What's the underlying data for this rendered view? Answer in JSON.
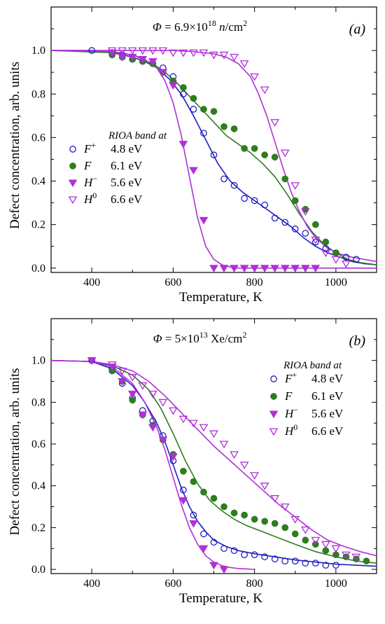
{
  "chart_data": [
    {
      "type": "scatter",
      "panel_label": "(a)",
      "fluence": {
        "prefix": "Φ",
        "text": " = 6.9×10",
        "exp": "18",
        "unit": " n/cm",
        "unit_exp": "2"
      },
      "xlabel": "Temperature, K",
      "ylabel": "Defect concentration, arb. units",
      "xlim": [
        300,
        1100
      ],
      "ylim": [
        -0.02,
        1.2
      ],
      "x_ticks": [
        400,
        600,
        800,
        1000
      ],
      "y_ticks": [
        0.0,
        0.2,
        0.4,
        0.6,
        0.8,
        1.0
      ],
      "legend": {
        "title": "RIOA band at",
        "placement": "middle-left"
      },
      "series": [
        {
          "name": "F",
          "sup": "+",
          "energy": "4.8 eV",
          "marker": "open-circle",
          "color": "#1f1fbf",
          "x": [
            400,
            450,
            475,
            500,
            525,
            550,
            575,
            600,
            625,
            650,
            675,
            700,
            725,
            750,
            775,
            800,
            825,
            850,
            875,
            900,
            925,
            950,
            975,
            1000,
            1025,
            1050
          ],
          "y": [
            1.0,
            0.99,
            0.98,
            0.96,
            0.95,
            0.94,
            0.92,
            0.88,
            0.8,
            0.73,
            0.62,
            0.52,
            0.41,
            0.38,
            0.32,
            0.31,
            0.29,
            0.23,
            0.21,
            0.18,
            0.16,
            0.12,
            0.09,
            0.07,
            0.05,
            0.04
          ],
          "fit_x": [
            300,
            400,
            450,
            500,
            530,
            560,
            590,
            620,
            650,
            680,
            710,
            740,
            770,
            800,
            830,
            860,
            890,
            920,
            950,
            980,
            1010,
            1040,
            1070,
            1100
          ],
          "fit_y": [
            1.0,
            1.0,
            0.99,
            0.97,
            0.95,
            0.92,
            0.87,
            0.8,
            0.7,
            0.59,
            0.48,
            0.4,
            0.35,
            0.31,
            0.27,
            0.23,
            0.19,
            0.14,
            0.1,
            0.07,
            0.05,
            0.03,
            0.02,
            0.015
          ]
        },
        {
          "name": "F",
          "sup": "",
          "energy": "6.1 eV",
          "marker": "filled-circle",
          "color": "#2e7d1e",
          "x": [
            450,
            475,
            500,
            525,
            550,
            575,
            600,
            625,
            650,
            675,
            700,
            725,
            750,
            775,
            800,
            825,
            850,
            875,
            900,
            925,
            950,
            975,
            1000
          ],
          "y": [
            0.98,
            0.97,
            0.96,
            0.95,
            0.94,
            0.9,
            0.86,
            0.83,
            0.78,
            0.73,
            0.72,
            0.65,
            0.64,
            0.55,
            0.55,
            0.52,
            0.51,
            0.41,
            0.31,
            0.27,
            0.2,
            0.12,
            0.07
          ],
          "fit_x": [
            300,
            450,
            500,
            550,
            580,
            610,
            640,
            670,
            700,
            730,
            760,
            790,
            820,
            850,
            880,
            910,
            940,
            970,
            1000,
            1030,
            1060,
            1100
          ],
          "fit_y": [
            1.0,
            0.99,
            0.98,
            0.94,
            0.9,
            0.85,
            0.79,
            0.73,
            0.67,
            0.61,
            0.57,
            0.53,
            0.48,
            0.42,
            0.34,
            0.25,
            0.17,
            0.11,
            0.07,
            0.04,
            0.025,
            0.015
          ]
        },
        {
          "name": "H",
          "sup": "−",
          "energy": "5.6 eV",
          "marker": "filled-triangle-down",
          "color": "#b030d8",
          "x": [
            450,
            475,
            500,
            525,
            550,
            575,
            600,
            625,
            650,
            675,
            700,
            725,
            750,
            775,
            800,
            825,
            850,
            875,
            900,
            925,
            950
          ],
          "y": [
            0.99,
            0.97,
            0.97,
            0.96,
            0.95,
            0.9,
            0.84,
            0.57,
            0.45,
            0.22,
            0.0,
            0.0,
            0.0,
            0.0,
            0.0,
            0.0,
            0.0,
            0.0,
            0.0,
            0.0,
            0.0
          ],
          "fit_x": [
            300,
            450,
            500,
            530,
            560,
            580,
            600,
            620,
            640,
            660,
            680,
            700,
            720,
            740,
            760,
            800,
            900,
            1100
          ],
          "fit_y": [
            1.0,
            0.995,
            0.98,
            0.96,
            0.92,
            0.86,
            0.76,
            0.61,
            0.42,
            0.23,
            0.1,
            0.04,
            0.015,
            0.005,
            0.0,
            0.0,
            0.0,
            0.0
          ]
        },
        {
          "name": "H",
          "sup": "0",
          "energy": "6.6 eV",
          "marker": "open-triangle-down",
          "color": "#b030d8",
          "x": [
            450,
            475,
            500,
            525,
            550,
            575,
            600,
            625,
            650,
            675,
            700,
            725,
            750,
            775,
            800,
            825,
            850,
            875,
            900,
            925,
            950,
            975,
            1000,
            1025
          ],
          "y": [
            1.0,
            1.0,
            1.0,
            1.0,
            1.0,
            1.0,
            0.99,
            0.99,
            0.99,
            0.99,
            0.98,
            0.98,
            0.97,
            0.94,
            0.88,
            0.82,
            0.67,
            0.53,
            0.38,
            0.26,
            0.13,
            0.07,
            0.04,
            0.02
          ],
          "fit_x": [
            300,
            600,
            650,
            700,
            730,
            760,
            790,
            810,
            830,
            850,
            870,
            890,
            910,
            930,
            950,
            980,
            1010,
            1040,
            1070,
            1100
          ],
          "fit_y": [
            1.0,
            1.0,
            0.995,
            0.985,
            0.97,
            0.94,
            0.88,
            0.8,
            0.7,
            0.58,
            0.46,
            0.35,
            0.26,
            0.19,
            0.14,
            0.09,
            0.065,
            0.05,
            0.04,
            0.03
          ]
        }
      ]
    },
    {
      "type": "scatter",
      "panel_label": "(b)",
      "fluence": {
        "prefix": "Φ",
        "text": " = 5×10",
        "exp": "13",
        "unit": " Xe/cm",
        "unit_exp": "2"
      },
      "xlabel": "Temperature, K",
      "ylabel": "Defect concentration, arb. units",
      "xlim": [
        300,
        1100
      ],
      "ylim": [
        -0.02,
        1.2
      ],
      "x_ticks": [
        400,
        600,
        800,
        1000
      ],
      "y_ticks": [
        0.0,
        0.2,
        0.4,
        0.6,
        0.8,
        1.0
      ],
      "legend": {
        "title": "RIOA band at",
        "placement": "middle-right"
      },
      "series": [
        {
          "name": "F",
          "sup": "+",
          "energy": "4.8 eV",
          "marker": "open-circle",
          "color": "#1f1fbf",
          "x": [
            400,
            450,
            475,
            500,
            525,
            550,
            575,
            600,
            625,
            650,
            675,
            700,
            725,
            750,
            775,
            800,
            825,
            850,
            875,
            900,
            925,
            950,
            975,
            1000
          ],
          "y": [
            1.0,
            0.96,
            0.89,
            0.82,
            0.76,
            0.71,
            0.64,
            0.52,
            0.38,
            0.26,
            0.17,
            0.13,
            0.1,
            0.09,
            0.07,
            0.07,
            0.06,
            0.05,
            0.04,
            0.04,
            0.03,
            0.03,
            0.02,
            0.02
          ],
          "fit_x": [
            300,
            400,
            450,
            500,
            530,
            560,
            580,
            600,
            620,
            640,
            660,
            680,
            700,
            730,
            760,
            800,
            850,
            900,
            950,
            1000,
            1050,
            1100
          ],
          "fit_y": [
            1.0,
            0.995,
            0.96,
            0.88,
            0.8,
            0.7,
            0.61,
            0.5,
            0.39,
            0.3,
            0.23,
            0.18,
            0.14,
            0.11,
            0.09,
            0.075,
            0.06,
            0.045,
            0.035,
            0.025,
            0.02,
            0.015
          ]
        },
        {
          "name": "F",
          "sup": "",
          "energy": "6.1 eV",
          "marker": "filled-circle",
          "color": "#2e7d1e",
          "x": [
            450,
            475,
            500,
            525,
            550,
            575,
            600,
            625,
            650,
            675,
            700,
            725,
            750,
            775,
            800,
            825,
            850,
            875,
            900,
            925,
            950,
            975,
            1000,
            1025,
            1050,
            1075
          ],
          "y": [
            0.95,
            0.9,
            0.81,
            0.74,
            0.69,
            0.62,
            0.55,
            0.47,
            0.42,
            0.37,
            0.34,
            0.3,
            0.27,
            0.26,
            0.24,
            0.23,
            0.22,
            0.2,
            0.17,
            0.14,
            0.12,
            0.09,
            0.07,
            0.06,
            0.05,
            0.04
          ],
          "fit_x": [
            300,
            400,
            450,
            500,
            540,
            570,
            600,
            630,
            660,
            690,
            720,
            750,
            780,
            820,
            860,
            900,
            950,
            1000,
            1050,
            1100
          ],
          "fit_y": [
            1.0,
            0.995,
            0.975,
            0.93,
            0.86,
            0.77,
            0.65,
            0.52,
            0.41,
            0.33,
            0.28,
            0.24,
            0.21,
            0.18,
            0.15,
            0.12,
            0.085,
            0.06,
            0.04,
            0.03
          ]
        },
        {
          "name": "H",
          "sup": "−",
          "energy": "5.6 eV",
          "marker": "filled-triangle-down",
          "color": "#b030d8",
          "x": [
            400,
            450,
            475,
            500,
            525,
            550,
            575,
            600,
            625,
            650,
            675,
            700,
            725
          ],
          "y": [
            1.0,
            0.97,
            0.9,
            0.84,
            0.74,
            0.68,
            0.62,
            0.54,
            0.33,
            0.22,
            0.1,
            0.02,
            0.0
          ],
          "fit_x": [
            300,
            400,
            450,
            500,
            530,
            560,
            580,
            600,
            620,
            640,
            660,
            680,
            700,
            720,
            740,
            760,
            780,
            800
          ],
          "fit_y": [
            1.0,
            0.995,
            0.97,
            0.89,
            0.8,
            0.68,
            0.57,
            0.44,
            0.31,
            0.2,
            0.12,
            0.065,
            0.035,
            0.018,
            0.009,
            0.004,
            0.002,
            0.0
          ]
        },
        {
          "name": "H",
          "sup": "0",
          "energy": "6.6 eV",
          "marker": "open-triangle-down",
          "color": "#b030d8",
          "x": [
            400,
            450,
            475,
            500,
            525,
            550,
            575,
            600,
            625,
            650,
            675,
            700,
            725,
            750,
            775,
            800,
            825,
            850,
            875,
            900,
            925,
            950,
            975,
            1000,
            1025,
            1050
          ],
          "y": [
            1.0,
            0.98,
            0.95,
            0.92,
            0.88,
            0.84,
            0.8,
            0.76,
            0.72,
            0.7,
            0.68,
            0.65,
            0.6,
            0.55,
            0.5,
            0.45,
            0.4,
            0.34,
            0.3,
            0.24,
            0.19,
            0.14,
            0.12,
            0.1,
            0.07,
            0.06
          ],
          "fit_x": [
            300,
            400,
            450,
            500,
            540,
            580,
            620,
            660,
            700,
            740,
            780,
            820,
            860,
            900,
            940,
            980,
            1020,
            1060,
            1100
          ],
          "fit_y": [
            1.0,
            0.995,
            0.98,
            0.95,
            0.9,
            0.83,
            0.75,
            0.67,
            0.59,
            0.52,
            0.45,
            0.38,
            0.31,
            0.25,
            0.19,
            0.14,
            0.11,
            0.085,
            0.065
          ]
        }
      ]
    }
  ]
}
